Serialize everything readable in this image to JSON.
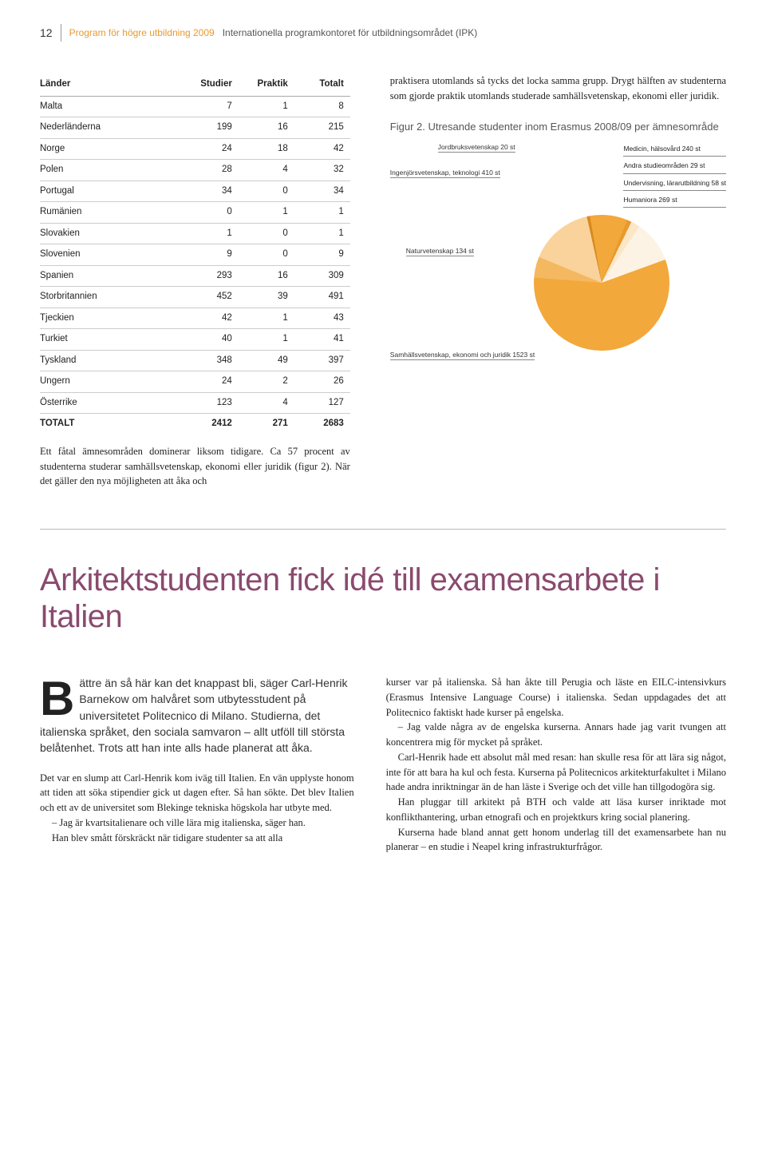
{
  "header": {
    "page_number": "12",
    "program": "Program för högre utbildning 2009",
    "org": "Internationella programkontoret för utbildningsområdet (IPK)"
  },
  "table": {
    "columns": [
      "Länder",
      "Studier",
      "Praktik",
      "Totalt"
    ],
    "rows": [
      [
        "Malta",
        "7",
        "1",
        "8"
      ],
      [
        "Nederländerna",
        "199",
        "16",
        "215"
      ],
      [
        "Norge",
        "24",
        "18",
        "42"
      ],
      [
        "Polen",
        "28",
        "4",
        "32"
      ],
      [
        "Portugal",
        "34",
        "0",
        "34"
      ],
      [
        "Rumänien",
        "0",
        "1",
        "1"
      ],
      [
        "Slovakien",
        "1",
        "0",
        "1"
      ],
      [
        "Slovenien",
        "9",
        "0",
        "9"
      ],
      [
        "Spanien",
        "293",
        "16",
        "309"
      ],
      [
        "Storbritannien",
        "452",
        "39",
        "491"
      ],
      [
        "Tjeckien",
        "42",
        "1",
        "43"
      ],
      [
        "Turkiet",
        "40",
        "1",
        "41"
      ],
      [
        "Tyskland",
        "348",
        "49",
        "397"
      ],
      [
        "Ungern",
        "24",
        "2",
        "26"
      ],
      [
        "Österrike",
        "123",
        "4",
        "127"
      ]
    ],
    "total_row": [
      "TOTALT",
      "2412",
      "271",
      "2683"
    ]
  },
  "left_body": "Ett fåtal ämnesområden dominerar liksom tidigare. Ca 57 procent av studenterna studerar samhällsvetenskap, ekonomi eller juridik (figur 2). När det gäller den nya möjligheten att åka och",
  "right_intro": "praktisera utomlands så tycks det locka samma grupp. Drygt hälften av studenterna som gjorde praktik utomlands studerade samhällsvetenskap, ekonomi eller juridik.",
  "figure_caption": "Figur 2. Utresande studenter inom Erasmus 2008/09 per ämnesområde",
  "pie": {
    "slices": [
      {
        "label": "Samhällsvetenskap, ekonomi och juridik 1523 st",
        "value": 1523,
        "color": "#f2a83b"
      },
      {
        "label": "Ingenjörsvetenskap, teknologi 410 st",
        "value": 410,
        "color": "#f9d39b"
      },
      {
        "label": "Humaniora 269 st",
        "value": 269,
        "color": "#fdf3e4"
      },
      {
        "label": "Medicin, hälsovård 240 st",
        "value": 240,
        "color": "#f2a83b"
      },
      {
        "label": "Naturvetenskap 134 st",
        "value": 134,
        "color": "#f4b860"
      },
      {
        "label": "Undervisning, lärarutbildning 58 st",
        "value": 58,
        "color": "#fbe6c6"
      },
      {
        "label": "Andra studieområden 29 st",
        "value": 29,
        "color": "#e89a2e"
      },
      {
        "label": "Jordbruksvetenskap 20 st",
        "value": 20,
        "color": "#d98a1f"
      }
    ],
    "total": 2683,
    "background": "#ffffff",
    "label_fontsize": 8.5,
    "legend_labels": [
      "Medicin, hälsovård 240 st",
      "Andra studieområden 29 st",
      "Undervisning, lärarutbildning 58 st",
      "Humaniora 269 st"
    ],
    "left_labels": {
      "jordbruk": "Jordbruksvetenskap 20 st",
      "ingenjor": "Ingenjörsvetenskap, teknologi 410 st",
      "natur": "Naturvetenskap 134 st",
      "samhall": "Samhällsvetenskap, ekonomi och juridik 1523 st"
    }
  },
  "article": {
    "title": "Arkitektstudenten fick idé till examensarbete i Italien",
    "dropcap": "B",
    "intro": "ättre än så här kan det knappast bli, säger Carl-Henrik Barnekow om halvåret som utbytesstudent på universitetet Politecnico di Milano. Studierna, det italienska språket, den sociala samvaron – allt utföll till största belåtenhet. Trots att han inte alls hade planerat att åka.",
    "left_paras": [
      "Det var en slump att Carl-Henrik kom iväg till Italien. En vän upplyste honom att tiden att söka stipendier gick ut dagen efter. Så han sökte. Det blev Italien och ett av de universitet som Blekinge tekniska högskola har utbyte med.",
      "– Jag är kvartsitalienare och ville lära mig italienska, säger han.",
      "Han blev smått förskräckt när tidigare studenter sa att alla"
    ],
    "right_paras": [
      "kurser var på italienska. Så han åkte till Perugia och läste en EILC-intensivkurs (Erasmus Intensive Language Course) i italienska. Sedan uppdagades det att Politecnico faktiskt hade kurser på engelska.",
      "– Jag valde några av de engelska kurserna. Annars hade jag varit tvungen att koncentrera mig för mycket på språket.",
      "Carl-Henrik hade ett absolut mål med resan: han skulle resa för att lära sig något, inte för att bara ha kul och festa. Kurserna på Politecnicos arkitekturfakultet i Milano hade andra inriktningar än de han läste i Sverige och det ville han tillgodogöra sig.",
      "Han pluggar till arkitekt på BTH och valde att läsa kurser inriktade mot konflikthantering, urban etnografi och en projektkurs kring social planering.",
      "Kurserna hade bland annat gett honom underlag till det examensarbete han nu planerar – en studie i Neapel kring infrastrukturfrågor."
    ]
  }
}
